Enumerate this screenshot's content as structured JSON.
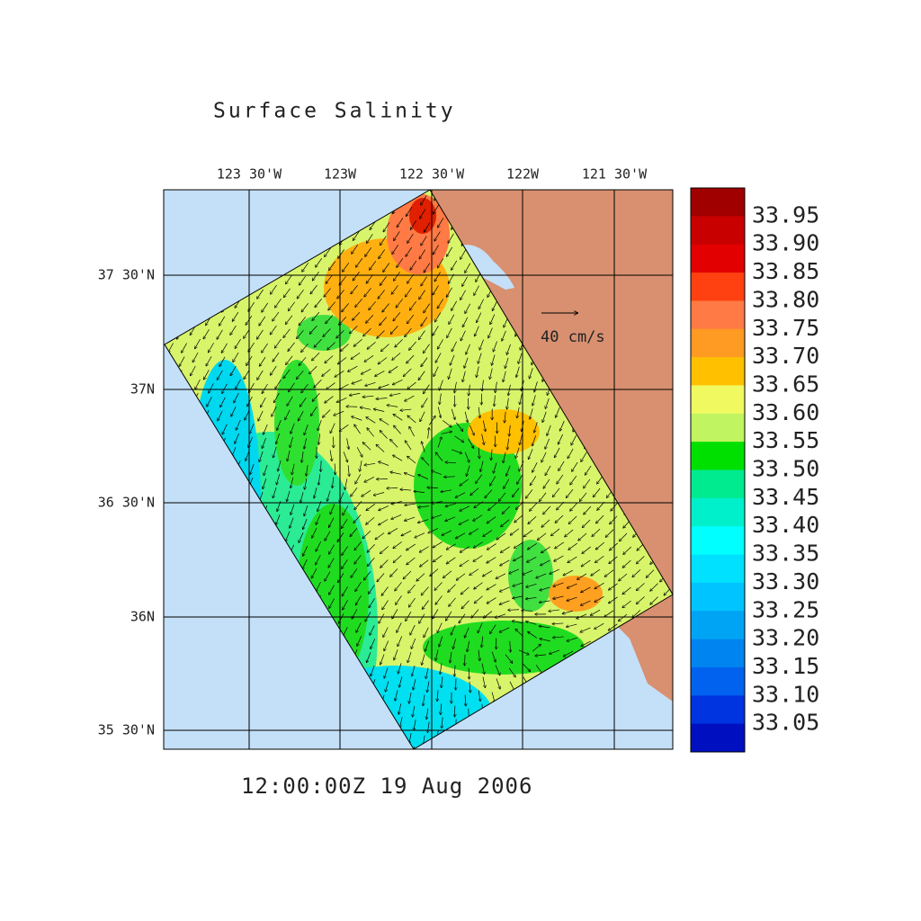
{
  "title": "Surface Salinity",
  "map": {
    "lon_labels": [
      "123 30'W",
      "123W",
      "122 30'W",
      "122W",
      "121 30'W"
    ],
    "lat_labels": [
      "37 30'N",
      "37N",
      "36 30'N",
      "36N",
      "35 30'N"
    ],
    "vector_reference": "40 cm/s",
    "timestamp": "12:00:00Z  19 Aug 2006"
  },
  "colorbar": {
    "colors": [
      "#a00000",
      "#c80000",
      "#e20000",
      "#ff4010",
      "#ff7a44",
      "#ff9a22",
      "#ffc000",
      "#f0fa60",
      "#c0f460",
      "#00e000",
      "#00ea90",
      "#00f0cc",
      "#00ffff",
      "#00e0ff",
      "#00c4ff",
      "#00a4f4",
      "#0084f0",
      "#0062ee",
      "#0034e0",
      "#0010c0"
    ],
    "levels": [
      {
        "value": 33.95,
        "label": "33.95"
      },
      {
        "value": 33.9,
        "label": "33.90"
      },
      {
        "value": 33.85,
        "label": "33.85"
      },
      {
        "value": 33.8,
        "label": "33.80"
      },
      {
        "value": 33.75,
        "label": "33.75"
      },
      {
        "value": 33.7,
        "label": "33.70"
      },
      {
        "value": 33.65,
        "label": "33.65"
      },
      {
        "value": 33.6,
        "label": "33.60"
      },
      {
        "value": 33.55,
        "label": "33.55"
      },
      {
        "value": 33.5,
        "label": "33.50"
      },
      {
        "value": 33.45,
        "label": "33.45"
      },
      {
        "value": 33.4,
        "label": "33.40"
      },
      {
        "value": 33.35,
        "label": "33.35"
      },
      {
        "value": 33.3,
        "label": "33.30"
      },
      {
        "value": 33.25,
        "label": "33.25"
      },
      {
        "value": 33.2,
        "label": "33.20"
      },
      {
        "value": 33.15,
        "label": "33.15"
      },
      {
        "value": 33.1,
        "label": "33.10"
      },
      {
        "value": 33.05,
        "label": "33.05"
      }
    ]
  }
}
